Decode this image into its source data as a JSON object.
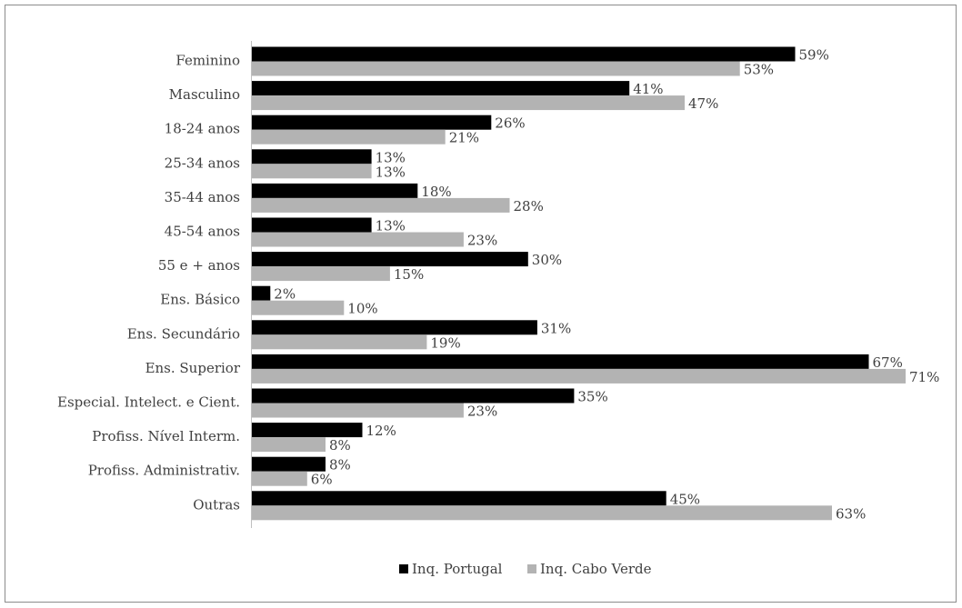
{
  "chart_data": {
    "type": "bar",
    "orientation": "horizontal",
    "categories": [
      "Feminino",
      "Masculino",
      "18-24 anos",
      "25-34 anos",
      "35-44 anos",
      "45-54 anos",
      "55 e + anos",
      "Ens. Básico",
      "Ens. Secundário",
      "Ens. Superior",
      "Especial. Intelect. e Cient.",
      "Profiss. Nível Interm.",
      "Profiss. Administrativ.",
      "Outras"
    ],
    "series": [
      {
        "name": "Inq. Portugal",
        "color": "#000000",
        "values": [
          59,
          41,
          26,
          13,
          18,
          13,
          30,
          2,
          31,
          67,
          35,
          12,
          8,
          45
        ],
        "labels": [
          "59%",
          "41%",
          "26%",
          "13%",
          "18%",
          "13%",
          "30%",
          "2%",
          "31%",
          "67%",
          "35%",
          "12%",
          "8%",
          "45%"
        ]
      },
      {
        "name": "Inq. Cabo Verde",
        "color": "#b3b3b3",
        "values": [
          53,
          47,
          21,
          13,
          28,
          23,
          15,
          10,
          19,
          71,
          23,
          8,
          6,
          63
        ],
        "labels": [
          "53%",
          "47%",
          "21%",
          "13%",
          "28%",
          "23%",
          "15%",
          "10%",
          "19%",
          "71%",
          "23%",
          "8%",
          "6%",
          "63%"
        ]
      }
    ],
    "xlim": [
      0,
      72
    ],
    "title": "",
    "xlabel": "",
    "ylabel": "",
    "grid": false,
    "legend_position": "bottom"
  }
}
